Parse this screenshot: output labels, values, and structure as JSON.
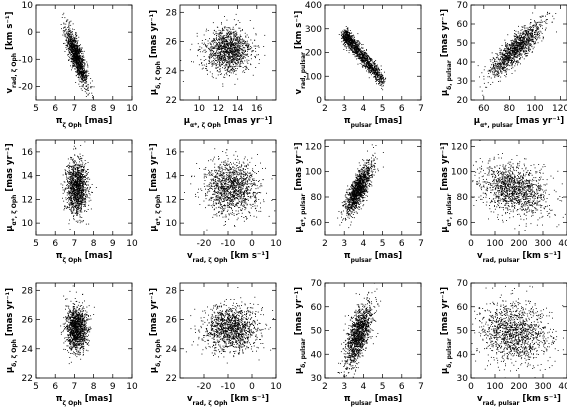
{
  "chart_data": [
    {
      "type": "scatter",
      "row": 0,
      "col": 0,
      "xlim": [
        5,
        10
      ],
      "ylim": [
        -25,
        10
      ],
      "xticks": [
        5,
        6,
        7,
        8,
        9,
        10
      ],
      "yticks": [
        -20,
        -10,
        0,
        10
      ],
      "xlabel": "π_ζ Oph [mas]",
      "ylabel": "v_rad, ζ Oph [km s⁻¹]",
      "cloud": {
        "cx": 7.1,
        "cy": -9,
        "sx": 0.28,
        "sy": 5.2,
        "rho": -0.8
      }
    },
    {
      "type": "scatter",
      "row": 0,
      "col": 1,
      "xlim": [
        8,
        18
      ],
      "ylim": [
        22,
        28.5
      ],
      "xticks": [
        10,
        12,
        14,
        16
      ],
      "yticks": [
        22,
        24,
        26,
        28
      ],
      "xlabel": "μ_α*, ζ Oph [mas yr⁻¹]",
      "ylabel": "μ_δ, ζ Oph [mas yr⁻¹]",
      "cloud": {
        "cx": 13,
        "cy": 25.4,
        "sx": 1.2,
        "sy": 0.75,
        "rho": 0
      }
    },
    {
      "type": "scatter",
      "row": 0,
      "col": 2,
      "xlim": [
        2,
        7
      ],
      "ylim": [
        0,
        400
      ],
      "xticks": [
        2,
        3,
        4,
        5,
        6,
        7
      ],
      "yticks": [
        0,
        100,
        200,
        300,
        400
      ],
      "xlabel": "π_pulsar [mas]",
      "ylabel": "v_rad, pulsar [km s⁻¹]",
      "curve": {
        "a": 560,
        "b": 95,
        "x0": 3.0,
        "x1": 5.0,
        "xscatter": 0.28,
        "yscatter": 16
      }
    },
    {
      "type": "scatter",
      "row": 0,
      "col": 3,
      "xlim": [
        50,
        125
      ],
      "ylim": [
        20,
        70
      ],
      "xticks": [
        60,
        80,
        100,
        120
      ],
      "yticks": [
        20,
        30,
        40,
        50,
        60,
        70
      ],
      "xlabel": "μ_α*, pulsar [mas yr⁻¹]",
      "ylabel": "μ_δ, pulsar [mas yr⁻¹]",
      "cloud": {
        "cx": 85,
        "cy": 47,
        "sx": 10,
        "sy": 7,
        "rho": 0.85
      }
    },
    {
      "type": "scatter",
      "row": 1,
      "col": 0,
      "xlim": [
        5,
        10
      ],
      "ylim": [
        9,
        17
      ],
      "xticks": [
        5,
        6,
        7,
        8,
        9,
        10
      ],
      "yticks": [
        10,
        12,
        14,
        16
      ],
      "xlabel": "π_ζ Oph [mas]",
      "ylabel": "μ_α*, ζ Oph [mas yr⁻¹]",
      "cloud": {
        "cx": 7.1,
        "cy": 13,
        "sx": 0.28,
        "sy": 1.1,
        "rho": 0
      }
    },
    {
      "type": "scatter",
      "row": 1,
      "col": 1,
      "xlim": [
        -30,
        10
      ],
      "ylim": [
        9,
        17
      ],
      "xticks": [
        -20,
        -10,
        0,
        10
      ],
      "yticks": [
        10,
        12,
        14,
        16
      ],
      "xlabel": "v_rad, ζ Oph [km s⁻¹]",
      "ylabel": "μ_α*, ζ Oph [mas yr⁻¹]",
      "cloud": {
        "cx": -9,
        "cy": 13,
        "sx": 5.5,
        "sy": 1.1,
        "rho": 0
      }
    },
    {
      "type": "scatter",
      "row": 1,
      "col": 2,
      "xlim": [
        2,
        7
      ],
      "ylim": [
        50,
        125
      ],
      "xticks": [
        2,
        3,
        4,
        5,
        6,
        7
      ],
      "yticks": [
        60,
        80,
        100,
        120
      ],
      "xlabel": "π_pulsar [mas]",
      "ylabel": "μ_α*, pulsar [mas yr⁻¹]",
      "cloud": {
        "cx": 3.7,
        "cy": 86,
        "sx": 0.35,
        "sy": 10,
        "rho": 0.75
      }
    },
    {
      "type": "scatter",
      "row": 1,
      "col": 3,
      "xlim": [
        0,
        400
      ],
      "ylim": [
        50,
        125
      ],
      "xticks": [
        0,
        100,
        200,
        300,
        400
      ],
      "yticks": [
        60,
        80,
        100,
        120
      ],
      "xlabel": "v_rad, pulsar [km s⁻¹]",
      "ylabel": "μ_α*, pulsar [mas yr⁻¹]",
      "cloud": {
        "cx": 180,
        "cy": 86,
        "sx": 70,
        "sy": 10,
        "rho": -0.25
      }
    },
    {
      "type": "scatter",
      "row": 2,
      "col": 0,
      "xlim": [
        5,
        10
      ],
      "ylim": [
        22,
        28.5
      ],
      "xticks": [
        5,
        6,
        7,
        8,
        9,
        10
      ],
      "yticks": [
        22,
        24,
        26,
        28
      ],
      "xlabel": "π_ζ Oph [mas]",
      "ylabel": "μ_δ, ζ Oph [mas yr⁻¹]",
      "cloud": {
        "cx": 7.1,
        "cy": 25.4,
        "sx": 0.28,
        "sy": 0.75,
        "rho": 0
      }
    },
    {
      "type": "scatter",
      "row": 2,
      "col": 1,
      "xlim": [
        -30,
        10
      ],
      "ylim": [
        22,
        28.5
      ],
      "xticks": [
        -20,
        -10,
        0,
        10
      ],
      "yticks": [
        22,
        24,
        26,
        28
      ],
      "xlabel": "v_rad, ζ Oph [km s⁻¹]",
      "ylabel": "μ_δ, ζ Oph [mas yr⁻¹]",
      "cloud": {
        "cx": -9,
        "cy": 25.4,
        "sx": 5.5,
        "sy": 0.75,
        "rho": 0
      }
    },
    {
      "type": "scatter",
      "row": 2,
      "col": 2,
      "xlim": [
        2,
        7
      ],
      "ylim": [
        30,
        70
      ],
      "xticks": [
        2,
        3,
        4,
        5,
        6,
        7
      ],
      "yticks": [
        30,
        40,
        50,
        60,
        70
      ],
      "xlabel": "π_pulsar [mas]",
      "ylabel": "μ_δ, pulsar [mas yr⁻¹]",
      "cloud": {
        "cx": 3.7,
        "cy": 48,
        "sx": 0.35,
        "sy": 6.5,
        "rho": 0.6
      }
    },
    {
      "type": "scatter",
      "row": 2,
      "col": 3,
      "xlim": [
        0,
        400
      ],
      "ylim": [
        30,
        70
      ],
      "xticks": [
        0,
        100,
        200,
        300,
        400
      ],
      "yticks": [
        30,
        40,
        50,
        60,
        70
      ],
      "xlabel": "v_rad, pulsar [km s⁻¹]",
      "ylabel": "μ_δ, pulsar [mas yr⁻¹]",
      "cloud": {
        "cx": 180,
        "cy": 49,
        "sx": 70,
        "sy": 6.5,
        "rho": -0.15
      }
    }
  ]
}
